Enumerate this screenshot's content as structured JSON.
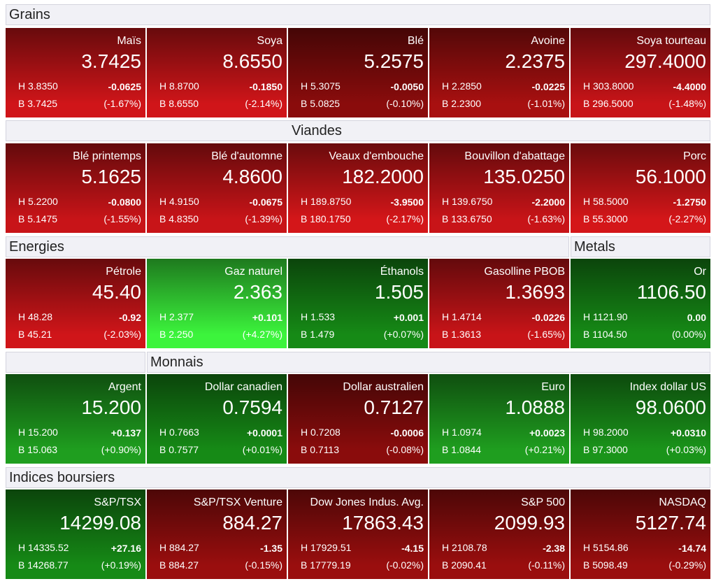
{
  "sections": [
    {
      "headers": [
        {
          "label": "Grains"
        }
      ],
      "tiles": [
        {
          "name": "Maïs",
          "last": "3.7425",
          "high": "H 3.8350",
          "change": "-0.0625",
          "low": "B 3.7425",
          "pct": "(-1.67%)",
          "color": "#d01519"
        },
        {
          "name": "Soya",
          "last": "8.6550",
          "high": "H 8.8700",
          "change": "-0.1850",
          "low": "B 8.6550",
          "pct": "(-2.14%)",
          "color": "#d01519"
        },
        {
          "name": "Blé",
          "last": "5.2575",
          "high": "H 5.3075",
          "change": "-0.0050",
          "low": "B 5.0825",
          "pct": "(-0.10%)",
          "color": "#8a0c0c"
        },
        {
          "name": "Avoine",
          "last": "2.2375",
          "high": "H 2.2850",
          "change": "-0.0225",
          "low": "B 2.2300",
          "pct": "(-1.01%)",
          "color": "#a81010"
        },
        {
          "name": "Soya tourteau",
          "last": "297.4000",
          "high": "H 303.8000",
          "change": "-4.4000",
          "low": "B 296.5000",
          "pct": "(-1.48%)",
          "color": "#c81418"
        }
      ]
    },
    {
      "headers": [
        {
          "label": "Viandes"
        }
      ],
      "tiles": [
        {
          "name": "Blé printemps",
          "last": "5.1625",
          "high": "H 5.2200",
          "change": "-0.0800",
          "low": "B 5.1475",
          "pct": "(-1.55%)",
          "color": "#c81418"
        },
        {
          "name": "Blé d'automne",
          "last": "4.8600",
          "high": "H 4.9150",
          "change": "-0.0675",
          "low": "B 4.8350",
          "pct": "(-1.39%)",
          "color": "#c81418"
        },
        {
          "name": "Veaux d'embouche",
          "last": "182.2000",
          "high": "H 189.8750",
          "change": "-3.9500",
          "low": "B 180.1750",
          "pct": "(-2.17%)",
          "color": "#d41619"
        },
        {
          "name": "Bouvillon d'abattage",
          "last": "135.0250",
          "high": "H 139.6750",
          "change": "-2.2000",
          "low": "B 133.6750",
          "pct": "(-1.63%)",
          "color": "#c81418"
        },
        {
          "name": "Porc",
          "last": "56.1000",
          "high": "H 58.5000",
          "change": "-1.2750",
          "low": "B 55.3000",
          "pct": "(-2.27%)",
          "color": "#d41619"
        }
      ]
    },
    {
      "headers": [
        {
          "label": "Energies"
        },
        {
          "label": "Metals"
        }
      ],
      "tiles": [
        {
          "name": "Pétrole",
          "last": "45.40",
          "high": "H 48.28",
          "change": "-0.92",
          "low": "B 45.21",
          "pct": "(-2.03%)",
          "color": "#d01519"
        },
        {
          "name": "Gaz naturel",
          "last": "2.363",
          "high": "H 2.377",
          "change": "+0.101",
          "low": "B 2.250",
          "pct": "(+4.27%)",
          "color": "#3cf43c"
        },
        {
          "name": "Éthanols",
          "last": "1.505",
          "high": "H 1.533",
          "change": "+0.001",
          "low": "B 1.479",
          "pct": "(+0.07%)",
          "color": "#168a16"
        },
        {
          "name": "Gasolline PBOB",
          "last": "1.3693",
          "high": "H 1.4714",
          "change": "-0.0226",
          "low": "B 1.3613",
          "pct": "(-1.65%)",
          "color": "#c81418"
        },
        {
          "name": "Or",
          "last": "1106.50",
          "high": "H 1121.90",
          "change": "0.00",
          "low": "B 1104.50",
          "pct": "(0.00%)",
          "color": "#168a16"
        }
      ]
    },
    {
      "headers": [
        {
          "label": "Monnais"
        }
      ],
      "tiles": [
        {
          "name": "Argent",
          "last": "15.200",
          "high": "H 15.200",
          "change": "+0.137",
          "low": "B 15.063",
          "pct": "(+0.90%)",
          "color": "#1f9e1f"
        },
        {
          "name": "Dollar canadien",
          "last": "0.7594",
          "high": "H 0.7663",
          "change": "+0.0001",
          "low": "B 0.7577",
          "pct": "(+0.01%)",
          "color": "#168a16"
        },
        {
          "name": "Dollar australien",
          "last": "0.7127",
          "high": "H 0.7208",
          "change": "-0.0006",
          "low": "B 0.7113",
          "pct": "(-0.08%)",
          "color": "#8a0c0c"
        },
        {
          "name": "Euro",
          "last": "1.0888",
          "high": "H 1.0974",
          "change": "+0.0023",
          "low": "B 1.0844",
          "pct": "(+0.21%)",
          "color": "#1f9e1f"
        },
        {
          "name": "Index dollar US",
          "last": "98.0600",
          "high": "H 98.2000",
          "change": "+0.0310",
          "low": "B 97.3000",
          "pct": "(+0.03%)",
          "color": "#1a941a"
        }
      ]
    },
    {
      "headers": [
        {
          "label": "Indices boursiers"
        }
      ],
      "tiles": [
        {
          "name": "S&P/TSX",
          "last": "14299.08",
          "high": "H 14335.52",
          "change": "+27.16",
          "low": "B 14268.77",
          "pct": "(+0.19%)",
          "color": "#168a16"
        },
        {
          "name": "S&P/TSX Venture",
          "last": "884.27",
          "high": "H 884.27",
          "change": "-1.35",
          "low": "B 884.27",
          "pct": "(-0.15%)",
          "color": "#9a0e0e"
        },
        {
          "name": "Dow Jones Indus. Avg.",
          "last": "17863.43",
          "high": "H 17929.51",
          "change": "-4.15",
          "low": "B 17779.19",
          "pct": "(-0.02%)",
          "color": "#9a0e0e"
        },
        {
          "name": "S&P 500",
          "last": "2099.93",
          "high": "H 2108.78",
          "change": "-2.38",
          "low": "B 2090.41",
          "pct": "(-0.11%)",
          "color": "#9a0e0e"
        },
        {
          "name": "NASDAQ",
          "last": "5127.74",
          "high": "H 5154.86",
          "change": "-14.74",
          "low": "B 5098.49",
          "pct": "(-0.29%)",
          "color": "#9a0e0e"
        }
      ]
    }
  ]
}
